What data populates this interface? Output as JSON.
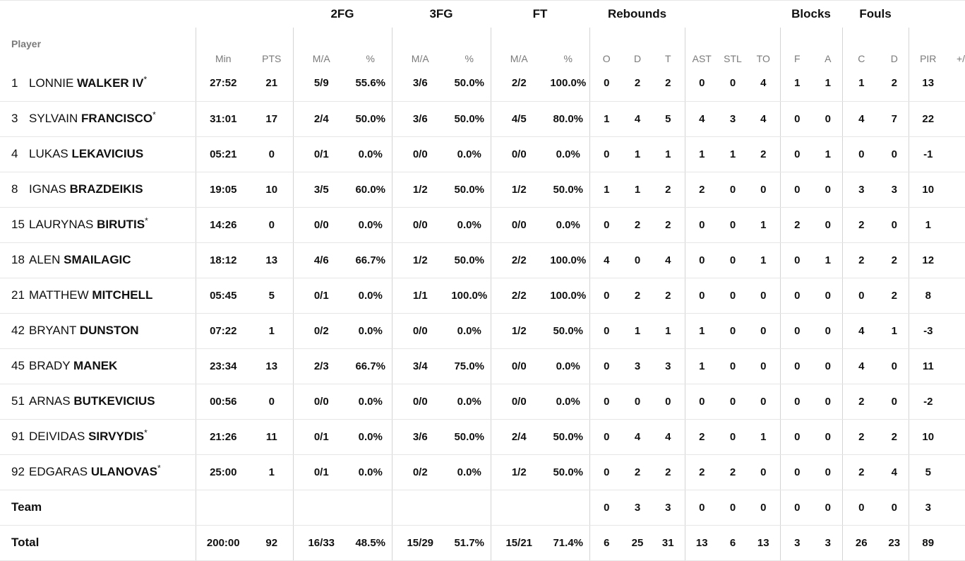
{
  "groups": {
    "fg2": "2FG",
    "fg3": "3FG",
    "ft": "FT",
    "rebounds": "Rebounds",
    "blocks": "Blocks",
    "fouls": "Fouls"
  },
  "headers": {
    "player": "Player",
    "min": "Min",
    "pts": "PTS",
    "fg2_ma": "M/A",
    "fg2_pct": "%",
    "fg3_ma": "M/A",
    "fg3_pct": "%",
    "ft_ma": "M/A",
    "ft_pct": "%",
    "reb_o": "O",
    "reb_d": "D",
    "reb_t": "T",
    "ast": "AST",
    "stl": "STL",
    "to": "TO",
    "blk_f": "F",
    "blk_a": "A",
    "foul_c": "C",
    "foul_d": "D",
    "pir": "PIR",
    "pm": "+/"
  },
  "players": [
    {
      "num": "1",
      "first": "LONNIE",
      "last": "WALKER IV",
      "star": "*",
      "min": "27:52",
      "pts": "21",
      "fg2_ma": "5/9",
      "fg2_pct": "55.6%",
      "fg3_ma": "3/6",
      "fg3_pct": "50.0%",
      "ft_ma": "2/2",
      "ft_pct": "100.0%",
      "reb_o": "0",
      "reb_d": "2",
      "reb_t": "2",
      "ast": "0",
      "stl": "0",
      "to": "4",
      "blk_f": "1",
      "blk_a": "1",
      "foul_c": "1",
      "foul_d": "2",
      "pir": "13"
    },
    {
      "num": "3",
      "first": "SYLVAIN",
      "last": "FRANCISCO",
      "star": "*",
      "min": "31:01",
      "pts": "17",
      "fg2_ma": "2/4",
      "fg2_pct": "50.0%",
      "fg3_ma": "3/6",
      "fg3_pct": "50.0%",
      "ft_ma": "4/5",
      "ft_pct": "80.0%",
      "reb_o": "1",
      "reb_d": "4",
      "reb_t": "5",
      "ast": "4",
      "stl": "3",
      "to": "4",
      "blk_f": "0",
      "blk_a": "0",
      "foul_c": "4",
      "foul_d": "7",
      "pir": "22"
    },
    {
      "num": "4",
      "first": "LUKAS",
      "last": "LEKAVICIUS",
      "star": "",
      "min": "05:21",
      "pts": "0",
      "fg2_ma": "0/1",
      "fg2_pct": "0.0%",
      "fg3_ma": "0/0",
      "fg3_pct": "0.0%",
      "ft_ma": "0/0",
      "ft_pct": "0.0%",
      "reb_o": "0",
      "reb_d": "1",
      "reb_t": "1",
      "ast": "1",
      "stl": "1",
      "to": "2",
      "blk_f": "0",
      "blk_a": "1",
      "foul_c": "0",
      "foul_d": "0",
      "pir": "-1"
    },
    {
      "num": "8",
      "first": "IGNAS",
      "last": "BRAZDEIKIS",
      "star": "",
      "min": "19:05",
      "pts": "10",
      "fg2_ma": "3/5",
      "fg2_pct": "60.0%",
      "fg3_ma": "1/2",
      "fg3_pct": "50.0%",
      "ft_ma": "1/2",
      "ft_pct": "50.0%",
      "reb_o": "1",
      "reb_d": "1",
      "reb_t": "2",
      "ast": "2",
      "stl": "0",
      "to": "0",
      "blk_f": "0",
      "blk_a": "0",
      "foul_c": "3",
      "foul_d": "3",
      "pir": "10"
    },
    {
      "num": "15",
      "first": "LAURYNAS",
      "last": "BIRUTIS",
      "star": "*",
      "min": "14:26",
      "pts": "0",
      "fg2_ma": "0/0",
      "fg2_pct": "0.0%",
      "fg3_ma": "0/0",
      "fg3_pct": "0.0%",
      "ft_ma": "0/0",
      "ft_pct": "0.0%",
      "reb_o": "0",
      "reb_d": "2",
      "reb_t": "2",
      "ast": "0",
      "stl": "0",
      "to": "1",
      "blk_f": "2",
      "blk_a": "0",
      "foul_c": "2",
      "foul_d": "0",
      "pir": "1"
    },
    {
      "num": "18",
      "first": "ALEN",
      "last": "SMAILAGIC",
      "star": "",
      "min": "18:12",
      "pts": "13",
      "fg2_ma": "4/6",
      "fg2_pct": "66.7%",
      "fg3_ma": "1/2",
      "fg3_pct": "50.0%",
      "ft_ma": "2/2",
      "ft_pct": "100.0%",
      "reb_o": "4",
      "reb_d": "0",
      "reb_t": "4",
      "ast": "0",
      "stl": "0",
      "to": "1",
      "blk_f": "0",
      "blk_a": "1",
      "foul_c": "2",
      "foul_d": "2",
      "pir": "12"
    },
    {
      "num": "21",
      "first": "MATTHEW",
      "last": "MITCHELL",
      "star": "",
      "min": "05:45",
      "pts": "5",
      "fg2_ma": "0/1",
      "fg2_pct": "0.0%",
      "fg3_ma": "1/1",
      "fg3_pct": "100.0%",
      "ft_ma": "2/2",
      "ft_pct": "100.0%",
      "reb_o": "0",
      "reb_d": "2",
      "reb_t": "2",
      "ast": "0",
      "stl": "0",
      "to": "0",
      "blk_f": "0",
      "blk_a": "0",
      "foul_c": "0",
      "foul_d": "2",
      "pir": "8"
    },
    {
      "num": "42",
      "first": "BRYANT",
      "last": "DUNSTON",
      "star": "",
      "min": "07:22",
      "pts": "1",
      "fg2_ma": "0/2",
      "fg2_pct": "0.0%",
      "fg3_ma": "0/0",
      "fg3_pct": "0.0%",
      "ft_ma": "1/2",
      "ft_pct": "50.0%",
      "reb_o": "0",
      "reb_d": "1",
      "reb_t": "1",
      "ast": "1",
      "stl": "0",
      "to": "0",
      "blk_f": "0",
      "blk_a": "0",
      "foul_c": "4",
      "foul_d": "1",
      "pir": "-3"
    },
    {
      "num": "45",
      "first": "BRADY",
      "last": "MANEK",
      "star": "",
      "min": "23:34",
      "pts": "13",
      "fg2_ma": "2/3",
      "fg2_pct": "66.7%",
      "fg3_ma": "3/4",
      "fg3_pct": "75.0%",
      "ft_ma": "0/0",
      "ft_pct": "0.0%",
      "reb_o": "0",
      "reb_d": "3",
      "reb_t": "3",
      "ast": "1",
      "stl": "0",
      "to": "0",
      "blk_f": "0",
      "blk_a": "0",
      "foul_c": "4",
      "foul_d": "0",
      "pir": "11"
    },
    {
      "num": "51",
      "first": "ARNAS",
      "last": "BUTKEVICIUS",
      "star": "",
      "min": "00:56",
      "pts": "0",
      "fg2_ma": "0/0",
      "fg2_pct": "0.0%",
      "fg3_ma": "0/0",
      "fg3_pct": "0.0%",
      "ft_ma": "0/0",
      "ft_pct": "0.0%",
      "reb_o": "0",
      "reb_d": "0",
      "reb_t": "0",
      "ast": "0",
      "stl": "0",
      "to": "0",
      "blk_f": "0",
      "blk_a": "0",
      "foul_c": "2",
      "foul_d": "0",
      "pir": "-2"
    },
    {
      "num": "91",
      "first": "DEIVIDAS",
      "last": "SIRVYDIS",
      "star": "*",
      "min": "21:26",
      "pts": "11",
      "fg2_ma": "0/1",
      "fg2_pct": "0.0%",
      "fg3_ma": "3/6",
      "fg3_pct": "50.0%",
      "ft_ma": "2/4",
      "ft_pct": "50.0%",
      "reb_o": "0",
      "reb_d": "4",
      "reb_t": "4",
      "ast": "2",
      "stl": "0",
      "to": "1",
      "blk_f": "0",
      "blk_a": "0",
      "foul_c": "2",
      "foul_d": "2",
      "pir": "10"
    },
    {
      "num": "92",
      "first": "EDGARAS",
      "last": "ULANOVAS",
      "star": "*",
      "min": "25:00",
      "pts": "1",
      "fg2_ma": "0/1",
      "fg2_pct": "0.0%",
      "fg3_ma": "0/2",
      "fg3_pct": "0.0%",
      "ft_ma": "1/2",
      "ft_pct": "50.0%",
      "reb_o": "0",
      "reb_d": "2",
      "reb_t": "2",
      "ast": "2",
      "stl": "2",
      "to": "0",
      "blk_f": "0",
      "blk_a": "0",
      "foul_c": "2",
      "foul_d": "4",
      "pir": "5"
    }
  ],
  "team": {
    "label": "Team",
    "reb_o": "0",
    "reb_d": "3",
    "reb_t": "3",
    "ast": "0",
    "stl": "0",
    "to": "0",
    "blk_f": "0",
    "blk_a": "0",
    "foul_c": "0",
    "foul_d": "0",
    "pir": "3"
  },
  "total": {
    "label": "Total",
    "min": "200:00",
    "pts": "92",
    "fg2_ma": "16/33",
    "fg2_pct": "48.5%",
    "fg3_ma": "15/29",
    "fg3_pct": "51.7%",
    "ft_ma": "15/21",
    "ft_pct": "71.4%",
    "reb_o": "6",
    "reb_d": "25",
    "reb_t": "31",
    "ast": "13",
    "stl": "6",
    "to": "13",
    "blk_f": "3",
    "blk_a": "3",
    "foul_c": "26",
    "foul_d": "23",
    "pir": "89"
  }
}
